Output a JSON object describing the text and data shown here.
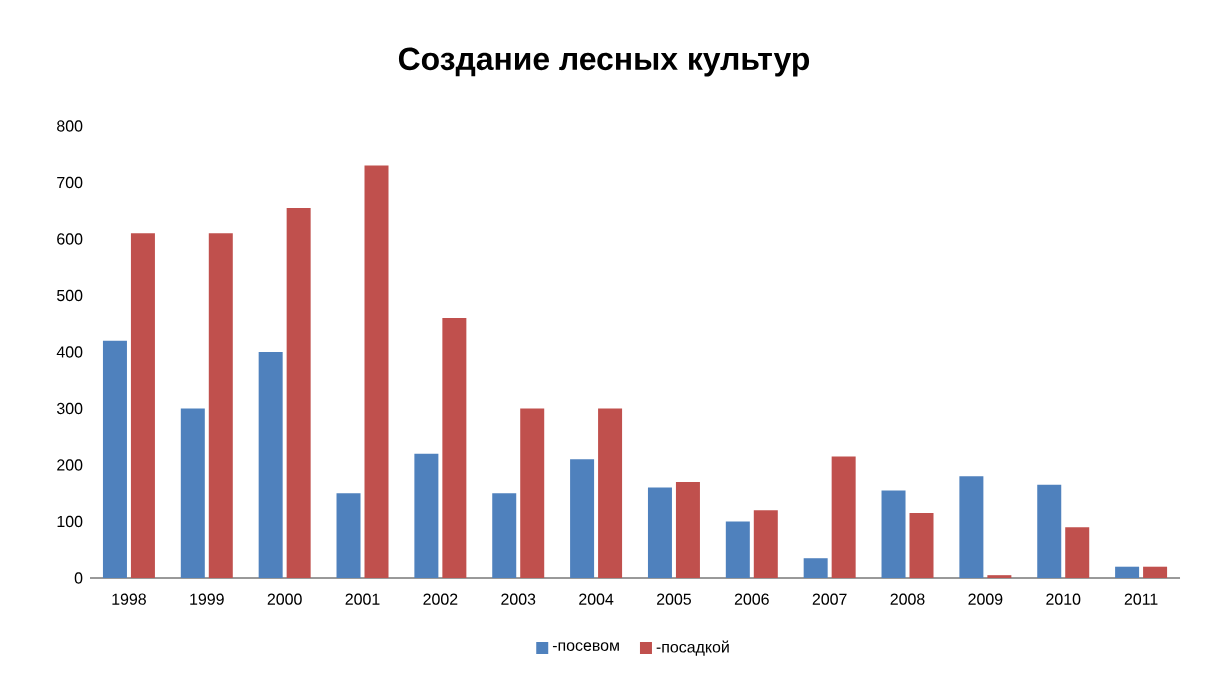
{
  "chart_data": {
    "type": "bar",
    "title": "Создание лесных культур",
    "categories": [
      "1998",
      "1999",
      "2000",
      "2001",
      "2002",
      "2003",
      "2004",
      "2005",
      "2006",
      "2007",
      "2008",
      "2009",
      "2010",
      "2011"
    ],
    "series": [
      {
        "name": "-посевом",
        "color": "#4f81bd",
        "values": [
          420,
          300,
          400,
          150,
          220,
          150,
          210,
          160,
          100,
          35,
          155,
          180,
          165,
          20
        ]
      },
      {
        "name": "-посадкой",
        "color": "#c0504d",
        "values": [
          610,
          610,
          655,
          730,
          460,
          300,
          300,
          170,
          120,
          215,
          115,
          5,
          90,
          20
        ]
      }
    ],
    "ylim": [
      0,
      800
    ],
    "yticks": [
      0,
      100,
      200,
      300,
      400,
      500,
      600,
      700,
      800
    ],
    "legend": "bottom"
  }
}
